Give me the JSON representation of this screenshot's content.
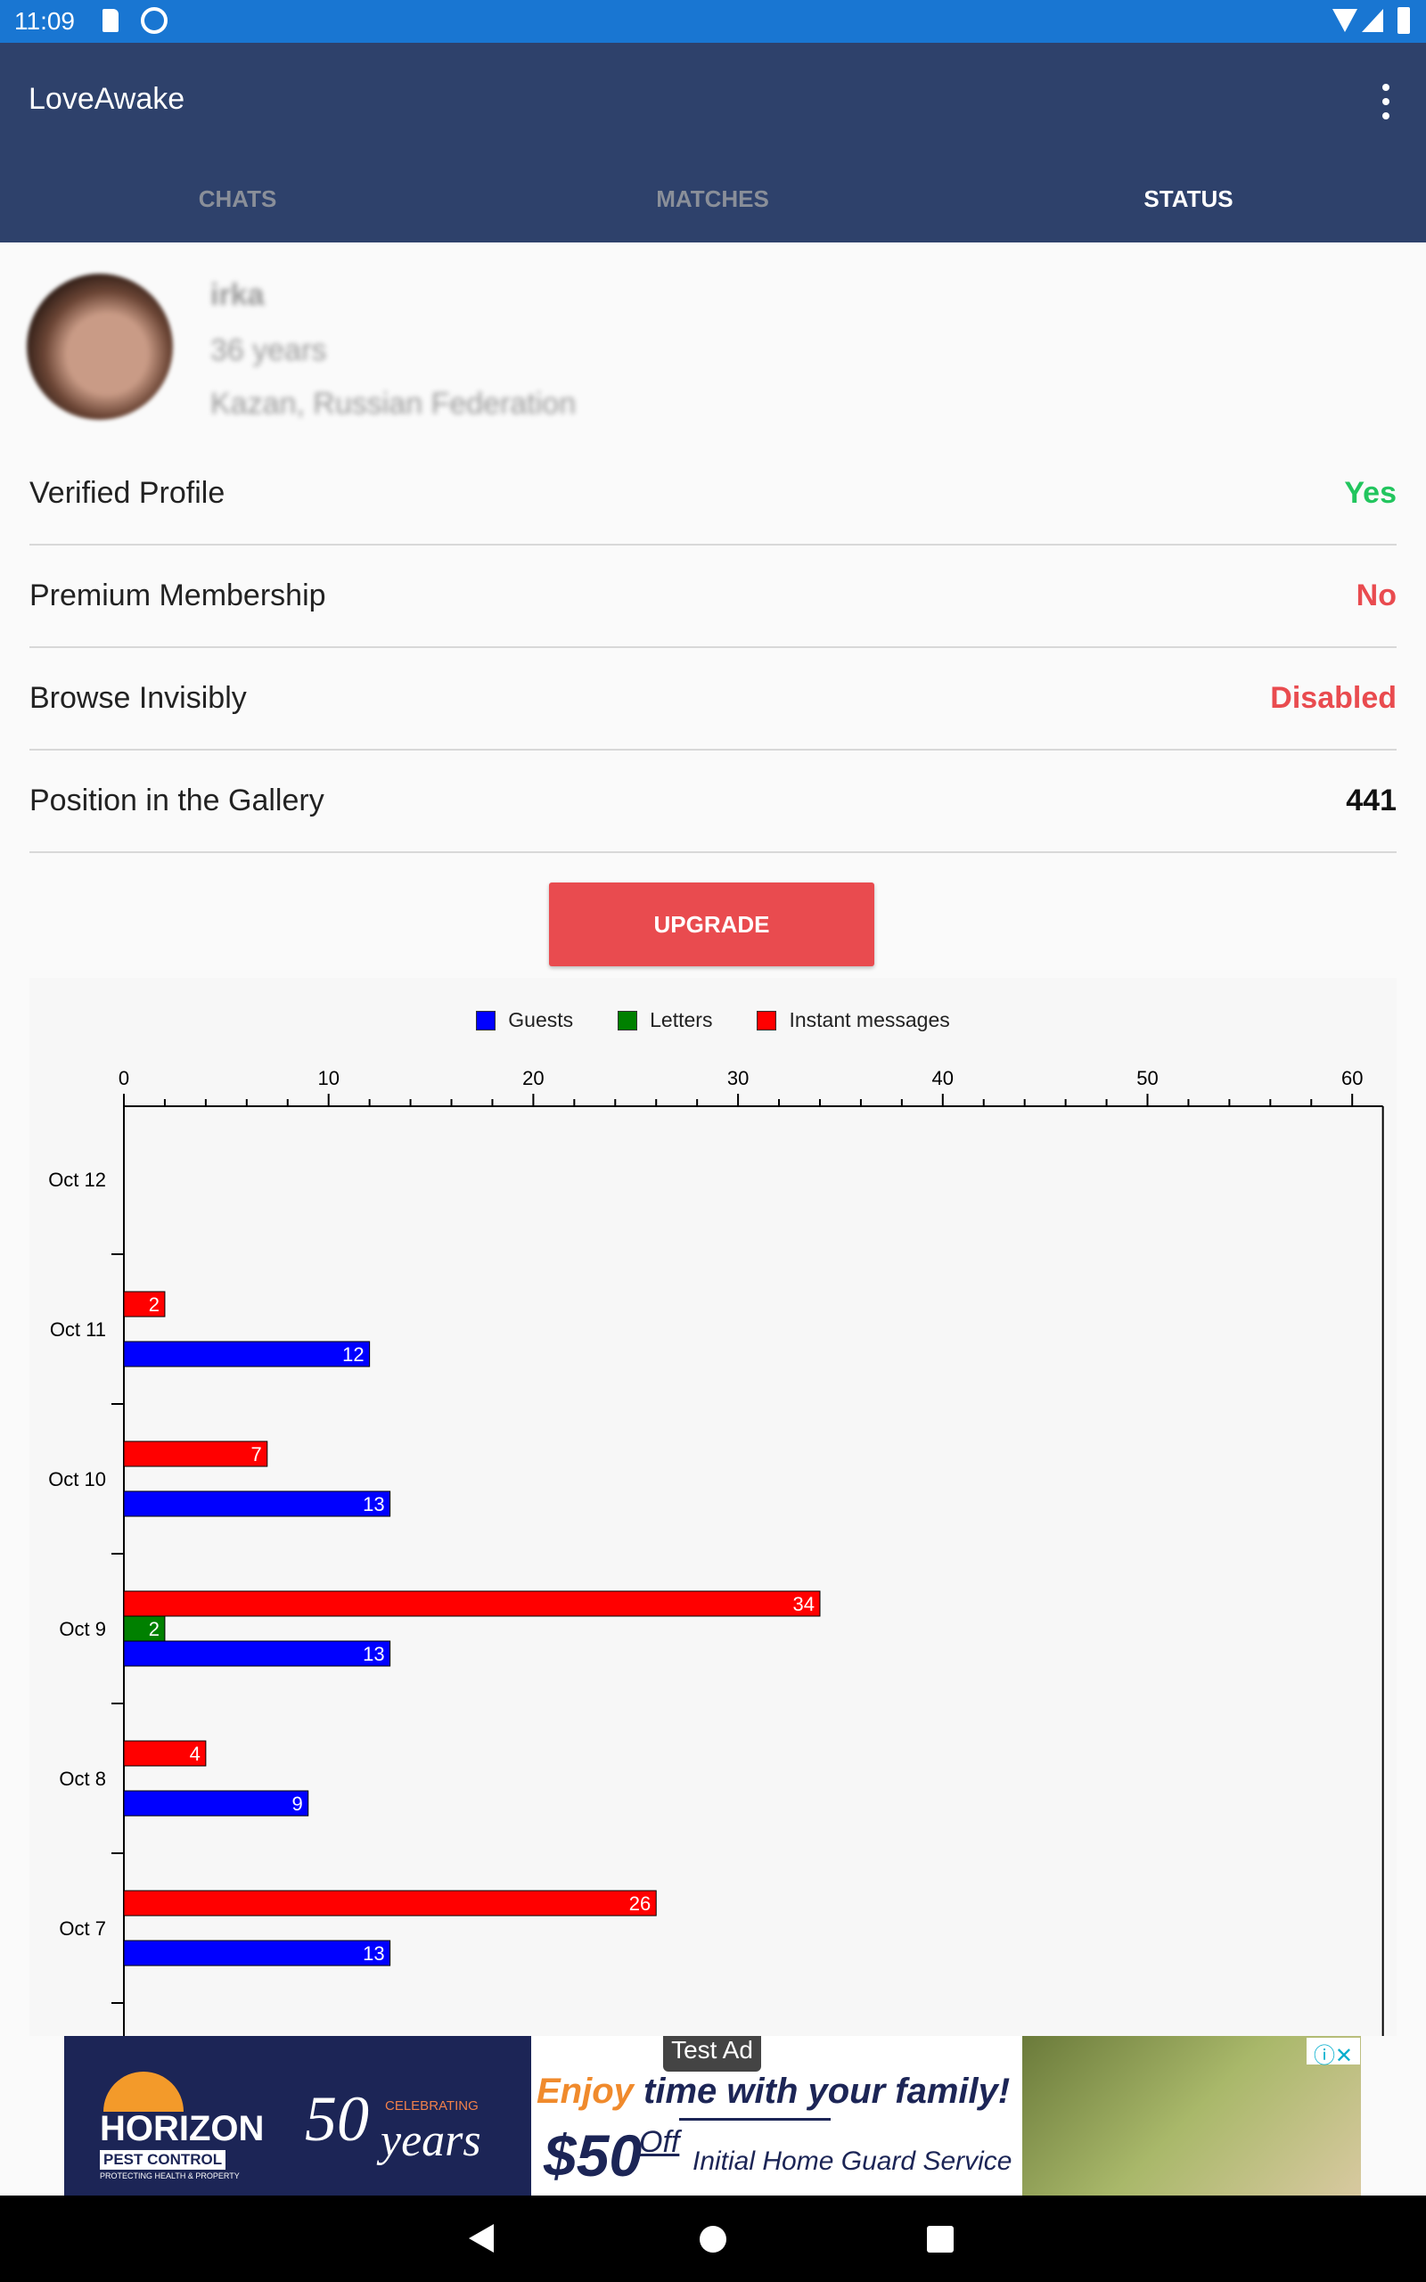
{
  "status_bar": {
    "time": "11:09"
  },
  "app_bar": {
    "title": "LoveAwake",
    "tabs": [
      {
        "label": "CHATS"
      },
      {
        "label": "MATCHES"
      },
      {
        "label": "STATUS",
        "active": true
      }
    ]
  },
  "profile": {
    "name": "irka",
    "age": "36 years",
    "location": "Kazan, Russian Federation"
  },
  "rows": [
    {
      "label": "Verified Profile",
      "value": "Yes",
      "color": "#22c55e"
    },
    {
      "label": "Premium Membership",
      "value": "No",
      "color": "#e94b4f"
    },
    {
      "label": "Browse Invisibly",
      "value": "Disabled",
      "color": "#e94b4f"
    },
    {
      "label": "Position in the Gallery",
      "value": "441",
      "color": "#111111"
    }
  ],
  "upgrade_label": "UPGRADE",
  "chart_data": {
    "type": "bar",
    "orientation": "horizontal",
    "legend": [
      {
        "name": "Guests",
        "color": "#0000ff"
      },
      {
        "name": "Letters",
        "color": "#008000"
      },
      {
        "name": "Instant messages",
        "color": "#ff0000"
      }
    ],
    "xlim": [
      0,
      61.5
    ],
    "xticks": [
      0,
      10,
      20,
      30,
      40,
      50,
      60
    ],
    "xtick_labels": [
      "0",
      "10",
      "20",
      "30",
      "40",
      "50",
      "60"
    ],
    "categories": [
      "Oct 12",
      "Oct 11",
      "Oct 10",
      "Oct 9",
      "Oct 8",
      "Oct 7"
    ],
    "series": [
      {
        "name": "Guests",
        "values": [
          0,
          12,
          13,
          13,
          9,
          13
        ]
      },
      {
        "name": "Letters",
        "values": [
          0,
          0,
          0,
          2,
          0,
          0
        ]
      },
      {
        "name": "Instant messages",
        "values": [
          0,
          2,
          7,
          34,
          4,
          26
        ]
      }
    ]
  },
  "ad": {
    "badge": "Test Ad",
    "brand": "HORIZON",
    "brand_sub": "PEST CONTROL",
    "tagline": "PROTECTING HEALTH & PROPERTY",
    "celebrating": "CELEBRATING",
    "years_num": "50",
    "years": "years",
    "headline_1": "Enjoy",
    "headline_2": "time with your family!",
    "offer_amount": "$50",
    "offer_off": "Off",
    "offer_text": "Initial Home Guard Service"
  }
}
